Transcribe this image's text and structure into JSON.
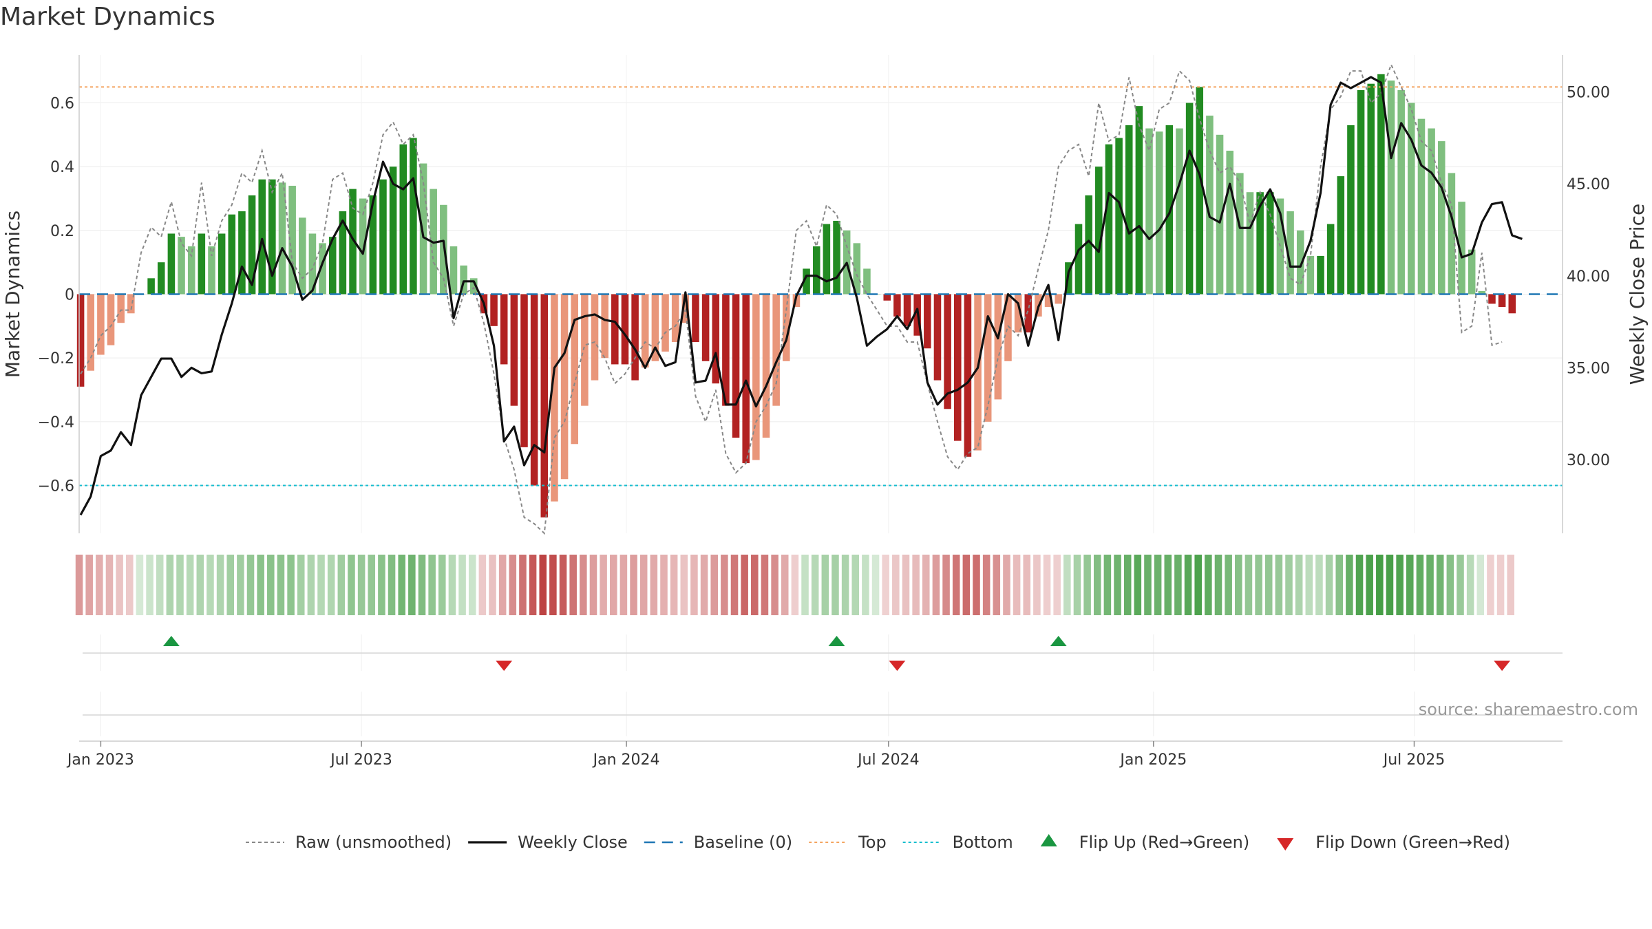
{
  "chart_data": {
    "type": "bar",
    "title": "Market Dynamics",
    "ylabel": "Market Dynamics",
    "y2label": "Weekly Close Price",
    "ylim": [
      -0.75,
      0.75
    ],
    "y2lim": [
      26.0,
      52.0
    ],
    "yticks": [
      -0.6,
      -0.4,
      -0.2,
      0,
      0.2,
      0.4,
      0.6
    ],
    "ytick_labels": [
      "−0.6",
      "−0.4",
      "−0.2",
      "0",
      "0.2",
      "0.4",
      "0.6"
    ],
    "y2ticks": [
      30,
      35,
      40,
      45,
      50
    ],
    "y2tick_labels": [
      "30.00",
      "35.00",
      "40.00",
      "45.00",
      "50.00"
    ],
    "xticks": [
      {
        "date": "2023-01-01",
        "label": "Jan 2023"
      },
      {
        "date": "2023-07-01",
        "label": "Jul 2023"
      },
      {
        "date": "2024-01-01",
        "label": "Jan 2024"
      },
      {
        "date": "2024-07-01",
        "label": "Jul 2024"
      },
      {
        "date": "2025-01-01",
        "label": "Jan 2025"
      },
      {
        "date": "2025-07-01",
        "label": "Jul 2025"
      }
    ],
    "x_range": [
      "2022-12-17",
      "2025-10-12"
    ],
    "first_week": "2022-12-18",
    "levels": {
      "top": 0.65,
      "bottom": -0.6,
      "baseline": 0
    },
    "grid": true,
    "legend_position": "bottom",
    "source_note": "source: sharemaestro.com",
    "colors": {
      "strong_green": "#228b22",
      "light_green": "#7fbf7f",
      "strong_red": "#b22222",
      "light_red": "#e9967a",
      "raw": "#888888",
      "close": "#111111",
      "baseline": "#1f77b4",
      "top": "#f4a460",
      "bottom": "#17becf",
      "flip_up": "#1a9641",
      "flip_down": "#d62728"
    },
    "series": [
      {
        "name": "Market Dynamics",
        "values": [
          -0.29,
          -0.24,
          -0.19,
          -0.16,
          -0.09,
          -0.06,
          0.0,
          0.05,
          0.1,
          0.19,
          0.18,
          0.15,
          0.19,
          0.15,
          0.19,
          0.25,
          0.26,
          0.31,
          0.36,
          0.36,
          0.35,
          0.34,
          0.24,
          0.19,
          0.16,
          0.18,
          0.26,
          0.33,
          0.3,
          0.31,
          0.36,
          0.4,
          0.47,
          0.49,
          0.41,
          0.33,
          0.28,
          0.15,
          0.09,
          0.05,
          -0.06,
          -0.1,
          -0.22,
          -0.35,
          -0.48,
          -0.6,
          -0.7,
          -0.65,
          -0.58,
          -0.47,
          -0.35,
          -0.27,
          -0.2,
          -0.22,
          -0.22,
          -0.27,
          -0.23,
          -0.21,
          -0.18,
          -0.15,
          -0.09,
          -0.15,
          -0.21,
          -0.28,
          -0.35,
          -0.45,
          -0.53,
          -0.52,
          -0.45,
          -0.35,
          -0.21,
          -0.04,
          0.08,
          0.15,
          0.22,
          0.23,
          0.2,
          0.16,
          0.08,
          0.0,
          -0.02,
          -0.07,
          -0.1,
          -0.13,
          -0.17,
          -0.27,
          -0.36,
          -0.46,
          -0.51,
          -0.49,
          -0.4,
          -0.33,
          -0.21,
          -0.12,
          -0.12,
          -0.07,
          -0.04,
          -0.03,
          0.1,
          0.22,
          0.31,
          0.4,
          0.47,
          0.49,
          0.53,
          0.59,
          0.52,
          0.51,
          0.53,
          0.52,
          0.6,
          0.65,
          0.56,
          0.5,
          0.45,
          0.38,
          0.32,
          0.32,
          0.32,
          0.3,
          0.26,
          0.2,
          0.12,
          0.12,
          0.22,
          0.37,
          0.53,
          0.64,
          0.66,
          0.69,
          0.67,
          0.64,
          0.6,
          0.55,
          0.52,
          0.48,
          0.38,
          0.29,
          0.14,
          0.01,
          -0.03,
          -0.04,
          -0.06
        ]
      },
      {
        "name": "Raw (unsmoothed)",
        "values": [
          -0.25,
          -0.2,
          -0.13,
          -0.1,
          -0.05,
          -0.05,
          0.13,
          0.21,
          0.18,
          0.29,
          0.16,
          0.12,
          0.35,
          0.12,
          0.23,
          0.28,
          0.38,
          0.35,
          0.45,
          0.32,
          0.38,
          0.1,
          0.05,
          0.08,
          0.16,
          0.36,
          0.38,
          0.27,
          0.25,
          0.35,
          0.5,
          0.54,
          0.47,
          0.5,
          0.35,
          0.1,
          0.05,
          -0.1,
          0.0,
          0.02,
          -0.09,
          -0.25,
          -0.45,
          -0.55,
          -0.7,
          -0.72,
          -0.75,
          -0.45,
          -0.4,
          -0.28,
          -0.16,
          -0.15,
          -0.2,
          -0.28,
          -0.25,
          -0.2,
          -0.15,
          -0.17,
          -0.12,
          -0.1,
          -0.05,
          -0.32,
          -0.4,
          -0.3,
          -0.5,
          -0.56,
          -0.53,
          -0.4,
          -0.35,
          -0.28,
          -0.05,
          0.2,
          0.23,
          0.15,
          0.28,
          0.25,
          0.15,
          0.06,
          0.0,
          -0.05,
          -0.1,
          -0.1,
          -0.15,
          -0.15,
          -0.28,
          -0.4,
          -0.51,
          -0.55,
          -0.5,
          -0.48,
          -0.35,
          -0.2,
          -0.1,
          -0.13,
          -0.05,
          0.08,
          0.2,
          0.4,
          0.45,
          0.47,
          0.37,
          0.6,
          0.48,
          0.5,
          0.68,
          0.53,
          0.45,
          0.58,
          0.6,
          0.7,
          0.67,
          0.55,
          0.45,
          0.38,
          0.4,
          0.35,
          0.22,
          0.32,
          0.25,
          0.15,
          0.05,
          0.03,
          0.12,
          0.4,
          0.58,
          0.62,
          0.7,
          0.7,
          0.6,
          0.63,
          0.72,
          0.65,
          0.58,
          0.48,
          0.45,
          0.35,
          0.28,
          -0.12,
          -0.1,
          0.13,
          -0.16,
          -0.15
        ]
      },
      {
        "name": "Weekly Close",
        "axis": "right",
        "values": [
          27.0,
          28.0,
          30.2,
          30.5,
          31.5,
          30.8,
          33.5,
          34.5,
          35.5,
          35.5,
          34.5,
          35.0,
          34.7,
          34.8,
          36.8,
          38.5,
          40.5,
          39.5,
          42.0,
          40.0,
          41.5,
          40.5,
          38.7,
          39.2,
          40.7,
          42.0,
          43.0,
          42.0,
          41.2,
          44.0,
          46.2,
          45.0,
          44.7,
          45.3,
          42.1,
          41.8,
          41.9,
          37.7,
          39.7,
          39.7,
          38.5,
          36.2,
          31.0,
          31.8,
          29.7,
          30.8,
          30.4,
          35.0,
          35.8,
          37.6,
          37.8,
          37.9,
          37.6,
          37.5,
          36.8,
          36.0,
          35.0,
          36.1,
          35.1,
          35.3,
          39.1,
          34.2,
          34.3,
          35.8,
          33.0,
          33.0,
          34.3,
          32.9,
          34.0,
          35.3,
          36.5,
          38.9,
          40.0,
          40.0,
          39.7,
          39.9,
          40.7,
          38.8,
          36.2,
          36.7,
          37.1,
          37.8,
          37.1,
          38.2,
          34.2,
          33.0,
          33.6,
          33.8,
          34.2,
          35.0,
          37.8,
          36.6,
          39.0,
          38.5,
          36.2,
          38.3,
          39.5,
          36.5,
          40.2,
          41.4,
          41.9,
          41.3,
          44.5,
          44.0,
          42.3,
          42.7,
          42.0,
          42.5,
          43.4,
          45.0,
          46.8,
          45.5,
          43.2,
          42.9,
          45.0,
          42.6,
          42.6,
          43.8,
          44.7,
          43.4,
          40.5,
          40.5,
          41.9,
          44.5,
          49.3,
          50.5,
          50.2,
          50.5,
          50.8,
          50.5,
          46.4,
          48.3,
          47.4,
          46.0,
          45.6,
          44.8,
          43.2,
          41.0,
          41.2,
          42.9,
          43.9,
          44.0,
          42.2,
          42.0
        ]
      }
    ],
    "flips": [
      {
        "date": "2023-02-19",
        "direction": "up"
      },
      {
        "date": "2023-10-08",
        "direction": "down"
      },
      {
        "date": "2024-05-26",
        "direction": "up"
      },
      {
        "date": "2024-07-07",
        "direction": "down"
      },
      {
        "date": "2024-10-27",
        "direction": "up"
      },
      {
        "date": "2025-08-31",
        "direction": "down"
      }
    ],
    "legend": [
      {
        "key": "raw",
        "label": "Raw (unsmoothed)"
      },
      {
        "key": "close",
        "label": "Weekly Close"
      },
      {
        "key": "baseline",
        "label": "Baseline (0)"
      },
      {
        "key": "top",
        "label": "Top"
      },
      {
        "key": "bottom",
        "label": "Bottom"
      },
      {
        "key": "flip_up",
        "label": "Flip Up (Red→Green)"
      },
      {
        "key": "flip_down",
        "label": "Flip Down (Green→Red)"
      }
    ]
  }
}
